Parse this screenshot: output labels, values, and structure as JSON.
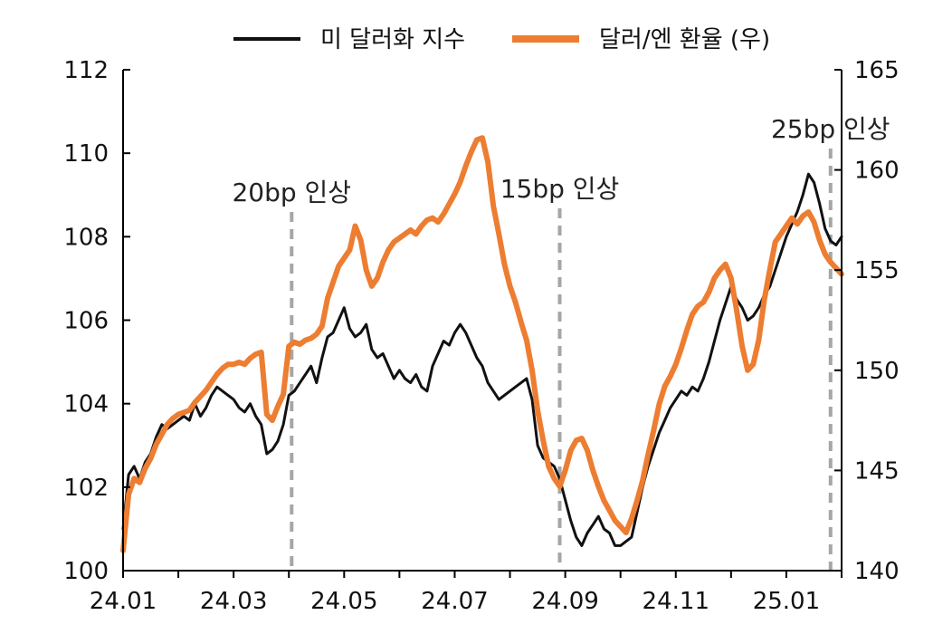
{
  "chart_data": {
    "type": "line",
    "legend": {
      "position": "top-center",
      "entries": [
        {
          "label": "미 달러화 지수",
          "color": "#111111"
        },
        {
          "label": "달러/엔 환율 (우)",
          "color": "#ED7D31"
        }
      ]
    },
    "x_tick_labels": [
      "24.01",
      "24.03",
      "24.05",
      "24.07",
      "24.09",
      "24.11",
      "25.01"
    ],
    "xlim": [
      0,
      13
    ],
    "y_left": {
      "range": [
        100,
        112
      ],
      "ticks": [
        100,
        102,
        104,
        106,
        108,
        110,
        112
      ]
    },
    "y_right": {
      "range": [
        140,
        165
      ],
      "ticks": [
        140,
        145,
        150,
        155,
        160,
        165
      ]
    },
    "grid": false,
    "annotations": [
      {
        "x": 3.05,
        "label": "20bp 인상"
      },
      {
        "x": 7.9,
        "label": "15bp 인상"
      },
      {
        "x": 12.8,
        "label": "25bp 인상"
      }
    ],
    "series": [
      {
        "name": "미 달러화 지수",
        "axis": "left",
        "color": "#111111",
        "points": [
          [
            0.0,
            101.0
          ],
          [
            0.1,
            102.3
          ],
          [
            0.2,
            102.5
          ],
          [
            0.3,
            102.2
          ],
          [
            0.4,
            102.6
          ],
          [
            0.5,
            102.8
          ],
          [
            0.6,
            103.2
          ],
          [
            0.7,
            103.5
          ],
          [
            0.8,
            103.4
          ],
          [
            0.9,
            103.5
          ],
          [
            1.0,
            103.6
          ],
          [
            1.1,
            103.7
          ],
          [
            1.2,
            103.6
          ],
          [
            1.3,
            104.0
          ],
          [
            1.4,
            103.7
          ],
          [
            1.5,
            103.9
          ],
          [
            1.6,
            104.2
          ],
          [
            1.7,
            104.4
          ],
          [
            1.8,
            104.3
          ],
          [
            1.9,
            104.2
          ],
          [
            2.0,
            104.1
          ],
          [
            2.1,
            103.9
          ],
          [
            2.2,
            103.8
          ],
          [
            2.3,
            104.0
          ],
          [
            2.4,
            103.7
          ],
          [
            2.5,
            103.5
          ],
          [
            2.6,
            102.8
          ],
          [
            2.7,
            102.9
          ],
          [
            2.8,
            103.1
          ],
          [
            2.9,
            103.5
          ],
          [
            3.0,
            104.2
          ],
          [
            3.1,
            104.3
          ],
          [
            3.2,
            104.5
          ],
          [
            3.3,
            104.7
          ],
          [
            3.4,
            104.9
          ],
          [
            3.5,
            104.5
          ],
          [
            3.6,
            105.1
          ],
          [
            3.7,
            105.6
          ],
          [
            3.8,
            105.7
          ],
          [
            3.9,
            106.0
          ],
          [
            4.0,
            106.3
          ],
          [
            4.1,
            105.8
          ],
          [
            4.2,
            105.6
          ],
          [
            4.3,
            105.7
          ],
          [
            4.4,
            105.9
          ],
          [
            4.5,
            105.3
          ],
          [
            4.6,
            105.1
          ],
          [
            4.7,
            105.2
          ],
          [
            4.8,
            104.9
          ],
          [
            4.9,
            104.6
          ],
          [
            5.0,
            104.8
          ],
          [
            5.1,
            104.6
          ],
          [
            5.2,
            104.5
          ],
          [
            5.3,
            104.7
          ],
          [
            5.4,
            104.4
          ],
          [
            5.5,
            104.3
          ],
          [
            5.6,
            104.9
          ],
          [
            5.7,
            105.2
          ],
          [
            5.8,
            105.5
          ],
          [
            5.9,
            105.4
          ],
          [
            6.0,
            105.7
          ],
          [
            6.1,
            105.9
          ],
          [
            6.2,
            105.7
          ],
          [
            6.3,
            105.4
          ],
          [
            6.4,
            105.1
          ],
          [
            6.5,
            104.9
          ],
          [
            6.6,
            104.5
          ],
          [
            6.7,
            104.3
          ],
          [
            6.8,
            104.1
          ],
          [
            6.9,
            104.2
          ],
          [
            7.0,
            104.3
          ],
          [
            7.1,
            104.4
          ],
          [
            7.2,
            104.5
          ],
          [
            7.3,
            104.6
          ],
          [
            7.4,
            104.1
          ],
          [
            7.5,
            103.0
          ],
          [
            7.6,
            102.7
          ],
          [
            7.7,
            102.6
          ],
          [
            7.8,
            102.5
          ],
          [
            7.9,
            102.2
          ],
          [
            8.0,
            101.7
          ],
          [
            8.1,
            101.2
          ],
          [
            8.2,
            100.8
          ],
          [
            8.3,
            100.6
          ],
          [
            8.4,
            100.9
          ],
          [
            8.5,
            101.1
          ],
          [
            8.6,
            101.3
          ],
          [
            8.7,
            101.0
          ],
          [
            8.8,
            100.9
          ],
          [
            8.9,
            100.6
          ],
          [
            9.0,
            100.6
          ],
          [
            9.1,
            100.7
          ],
          [
            9.2,
            100.8
          ],
          [
            9.3,
            101.4
          ],
          [
            9.4,
            102.0
          ],
          [
            9.5,
            102.5
          ],
          [
            9.6,
            102.9
          ],
          [
            9.7,
            103.3
          ],
          [
            9.8,
            103.6
          ],
          [
            9.9,
            103.9
          ],
          [
            10.0,
            104.1
          ],
          [
            10.1,
            104.3
          ],
          [
            10.2,
            104.2
          ],
          [
            10.3,
            104.4
          ],
          [
            10.4,
            104.3
          ],
          [
            10.5,
            104.6
          ],
          [
            10.6,
            105.0
          ],
          [
            10.7,
            105.5
          ],
          [
            10.8,
            106.0
          ],
          [
            10.9,
            106.4
          ],
          [
            11.0,
            106.8
          ],
          [
            11.1,
            106.5
          ],
          [
            11.2,
            106.3
          ],
          [
            11.3,
            106.0
          ],
          [
            11.4,
            106.1
          ],
          [
            11.5,
            106.3
          ],
          [
            11.6,
            106.6
          ],
          [
            11.7,
            106.8
          ],
          [
            11.8,
            107.2
          ],
          [
            11.9,
            107.6
          ],
          [
            12.0,
            108.0
          ],
          [
            12.1,
            108.3
          ],
          [
            12.2,
            108.6
          ],
          [
            12.3,
            109.0
          ],
          [
            12.4,
            109.5
          ],
          [
            12.5,
            109.3
          ],
          [
            12.6,
            108.8
          ],
          [
            12.7,
            108.2
          ],
          [
            12.8,
            107.9
          ],
          [
            12.9,
            107.8
          ],
          [
            13.0,
            108.0
          ]
        ]
      },
      {
        "name": "달러/엔 환율 (우)",
        "axis": "right",
        "color": "#ED7D31",
        "points": [
          [
            0.0,
            141.0
          ],
          [
            0.1,
            143.8
          ],
          [
            0.2,
            144.6
          ],
          [
            0.3,
            144.4
          ],
          [
            0.4,
            145.1
          ],
          [
            0.5,
            145.6
          ],
          [
            0.6,
            146.3
          ],
          [
            0.7,
            146.8
          ],
          [
            0.8,
            147.3
          ],
          [
            0.9,
            147.6
          ],
          [
            1.0,
            147.8
          ],
          [
            1.1,
            147.9
          ],
          [
            1.2,
            148.0
          ],
          [
            1.3,
            148.4
          ],
          [
            1.4,
            148.7
          ],
          [
            1.5,
            149.0
          ],
          [
            1.6,
            149.4
          ],
          [
            1.7,
            149.8
          ],
          [
            1.8,
            150.1
          ],
          [
            1.9,
            150.3
          ],
          [
            2.0,
            150.3
          ],
          [
            2.1,
            150.4
          ],
          [
            2.2,
            150.3
          ],
          [
            2.3,
            150.6
          ],
          [
            2.4,
            150.8
          ],
          [
            2.5,
            150.9
          ],
          [
            2.6,
            147.8
          ],
          [
            2.7,
            147.5
          ],
          [
            2.8,
            148.2
          ],
          [
            2.9,
            148.8
          ],
          [
            3.0,
            151.2
          ],
          [
            3.1,
            151.4
          ],
          [
            3.2,
            151.3
          ],
          [
            3.3,
            151.5
          ],
          [
            3.4,
            151.6
          ],
          [
            3.5,
            151.8
          ],
          [
            3.6,
            152.2
          ],
          [
            3.7,
            153.6
          ],
          [
            3.8,
            154.4
          ],
          [
            3.9,
            155.2
          ],
          [
            4.0,
            155.6
          ],
          [
            4.1,
            156.0
          ],
          [
            4.2,
            157.2
          ],
          [
            4.3,
            156.5
          ],
          [
            4.4,
            155.0
          ],
          [
            4.5,
            154.2
          ],
          [
            4.6,
            154.6
          ],
          [
            4.7,
            155.4
          ],
          [
            4.8,
            156.0
          ],
          [
            4.9,
            156.4
          ],
          [
            5.0,
            156.6
          ],
          [
            5.1,
            156.8
          ],
          [
            5.2,
            157.0
          ],
          [
            5.3,
            156.8
          ],
          [
            5.4,
            157.2
          ],
          [
            5.5,
            157.5
          ],
          [
            5.6,
            157.6
          ],
          [
            5.7,
            157.4
          ],
          [
            5.8,
            157.8
          ],
          [
            5.9,
            158.3
          ],
          [
            6.0,
            158.8
          ],
          [
            6.1,
            159.4
          ],
          [
            6.2,
            160.2
          ],
          [
            6.3,
            160.9
          ],
          [
            6.4,
            161.5
          ],
          [
            6.5,
            161.6
          ],
          [
            6.6,
            160.4
          ],
          [
            6.7,
            158.2
          ],
          [
            6.8,
            156.8
          ],
          [
            6.9,
            155.3
          ],
          [
            7.0,
            154.2
          ],
          [
            7.1,
            153.4
          ],
          [
            7.2,
            152.4
          ],
          [
            7.3,
            151.5
          ],
          [
            7.4,
            150.0
          ],
          [
            7.5,
            148.0
          ],
          [
            7.6,
            146.5
          ],
          [
            7.7,
            145.2
          ],
          [
            7.8,
            144.6
          ],
          [
            7.9,
            144.2
          ],
          [
            8.0,
            145.0
          ],
          [
            8.1,
            146.0
          ],
          [
            8.2,
            146.5
          ],
          [
            8.3,
            146.6
          ],
          [
            8.4,
            146.0
          ],
          [
            8.5,
            145.0
          ],
          [
            8.6,
            144.2
          ],
          [
            8.7,
            143.5
          ],
          [
            8.8,
            143.0
          ],
          [
            8.9,
            142.5
          ],
          [
            9.0,
            142.2
          ],
          [
            9.1,
            141.9
          ],
          [
            9.2,
            142.6
          ],
          [
            9.3,
            143.5
          ],
          [
            9.4,
            144.5
          ],
          [
            9.5,
            145.8
          ],
          [
            9.6,
            147.0
          ],
          [
            9.7,
            148.3
          ],
          [
            9.8,
            149.2
          ],
          [
            9.9,
            149.7
          ],
          [
            10.0,
            150.3
          ],
          [
            10.1,
            151.1
          ],
          [
            10.2,
            152.0
          ],
          [
            10.3,
            152.8
          ],
          [
            10.4,
            153.2
          ],
          [
            10.5,
            153.4
          ],
          [
            10.6,
            153.9
          ],
          [
            10.7,
            154.6
          ],
          [
            10.8,
            155.0
          ],
          [
            10.9,
            155.3
          ],
          [
            11.0,
            154.6
          ],
          [
            11.1,
            153.0
          ],
          [
            11.2,
            151.2
          ],
          [
            11.3,
            150.0
          ],
          [
            11.4,
            150.3
          ],
          [
            11.5,
            151.5
          ],
          [
            11.6,
            153.5
          ],
          [
            11.7,
            155.0
          ],
          [
            11.8,
            156.4
          ],
          [
            11.9,
            156.8
          ],
          [
            12.0,
            157.2
          ],
          [
            12.1,
            157.6
          ],
          [
            12.2,
            157.3
          ],
          [
            12.3,
            157.7
          ],
          [
            12.4,
            157.9
          ],
          [
            12.5,
            157.4
          ],
          [
            12.6,
            156.5
          ],
          [
            12.7,
            155.8
          ],
          [
            12.8,
            155.4
          ],
          [
            12.9,
            155.1
          ],
          [
            13.0,
            154.8
          ]
        ]
      }
    ]
  }
}
